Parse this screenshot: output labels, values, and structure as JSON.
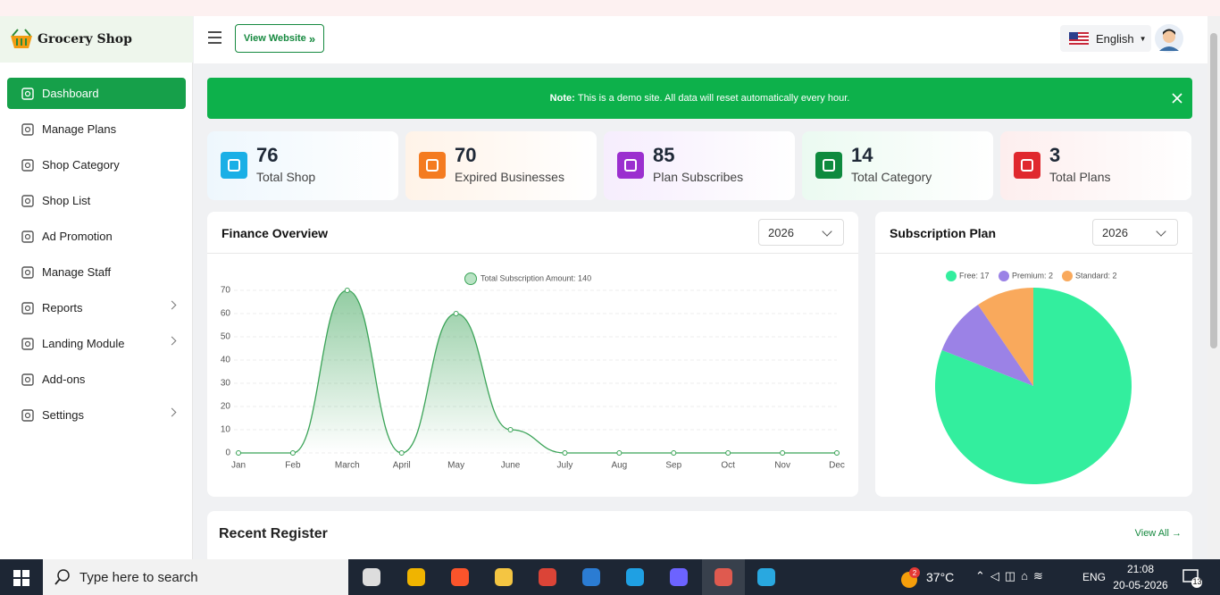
{
  "sidebar": {
    "brand": "Grocery Shop",
    "menu": [
      "Dashboard",
      "Manage Plans",
      "Shop Category",
      "Shop List",
      "Ad Promotion",
      "Manage Staff",
      "Reports",
      "Landing Module",
      "Add-ons",
      "Settings"
    ]
  },
  "header": {
    "view_website": "View Website",
    "language": "English"
  },
  "notice": {
    "label": "Note:",
    "text": "This is a demo site. All data will reset automatically every hour."
  },
  "stats": [
    {
      "value": "76",
      "label": "Total Shop"
    },
    {
      "value": "70",
      "label": "Expired Businesses"
    },
    {
      "value": "85",
      "label": "Plan Subscribes"
    },
    {
      "value": "14",
      "label": "Total Category"
    },
    {
      "value": "3",
      "label": "Total Plans"
    }
  ],
  "finance_card": {
    "title": "Finance Overview",
    "year": "2026"
  },
  "subscription_card": {
    "title": "Subscription Plan",
    "year": "2026"
  },
  "chart_data": [
    {
      "type": "line",
      "categories": [
        "Jan",
        "Feb",
        "March",
        "April",
        "May",
        "June",
        "July",
        "Aug",
        "Sep",
        "Oct",
        "Nov",
        "Dec"
      ],
      "series": [
        {
          "name": "Total Subscription Amount: 140",
          "color": "#3aa357",
          "values": [
            0,
            0,
            70,
            0,
            60,
            10,
            0,
            0,
            0,
            0,
            0,
            0
          ]
        }
      ],
      "ylim": [
        0,
        70
      ],
      "yticks": [
        0,
        10,
        20,
        30,
        40,
        50,
        60,
        70
      ],
      "grid": true
    },
    {
      "type": "pie",
      "categories": [
        "Free",
        "Premium",
        "Standard"
      ],
      "values": [
        17,
        2,
        2
      ],
      "legend_labels": [
        "Free: 17",
        "Premium: 2",
        "Standard: 2"
      ],
      "colors": [
        "#33ee9e",
        "#9b82e6",
        "#f9a95c"
      ]
    }
  ],
  "recent_register": {
    "title": "Recent Register",
    "view_all": "View All"
  },
  "taskbar": {
    "search": "Type here to search",
    "weather_badge": "2",
    "temperature": "37°C",
    "language": "ENG",
    "time": "21:08",
    "date": "20-05-2026",
    "notifications": "13"
  }
}
